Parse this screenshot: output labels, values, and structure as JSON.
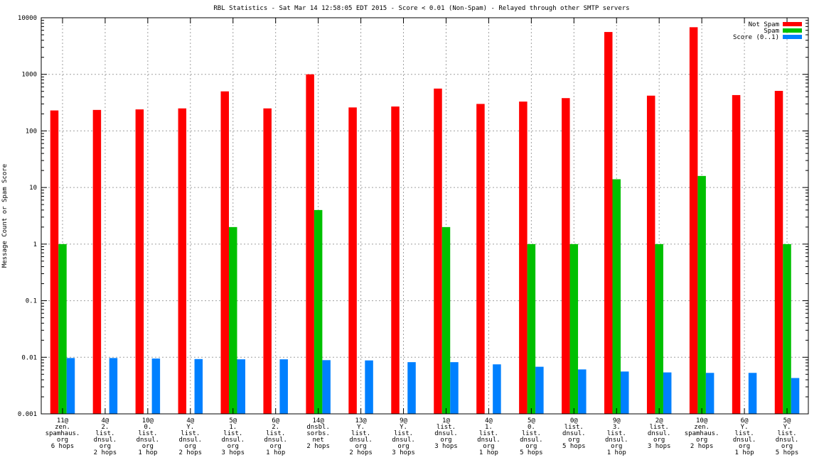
{
  "chart_data": {
    "type": "bar",
    "title": "RBL Statistics - Sat Mar 14 12:58:05 EDT 2015 - Score < 0.01 (Non-Spam) - Relayed through other SMTP servers",
    "xlabel": "",
    "ylabel": "Message Count or Spam Score",
    "yscale": "log",
    "ylim": [
      0.001,
      10000
    ],
    "yticks": [
      {
        "value": 0.001,
        "label": "0.001"
      },
      {
        "value": 0.01,
        "label": "0.01"
      },
      {
        "value": 0.1,
        "label": "0.1"
      },
      {
        "value": 1,
        "label": "1"
      },
      {
        "value": 10,
        "label": "10"
      },
      {
        "value": 100,
        "label": "100"
      },
      {
        "value": 1000,
        "label": "1000"
      },
      {
        "value": 10000,
        "label": "10000"
      }
    ],
    "grid": true,
    "legend_position": "top-right",
    "categories": [
      [
        "11@",
        "zen.",
        "spamhaus.",
        "org",
        "6 hops"
      ],
      [
        "4@",
        "2.",
        "list.",
        "dnsul.",
        "org",
        "2 hops"
      ],
      [
        "10@",
        "0.",
        "list.",
        "dnsul.",
        "org",
        "1 hop"
      ],
      [
        "4@",
        "Y.",
        "list.",
        "dnsul.",
        "org",
        "2 hops"
      ],
      [
        "5@",
        "1.",
        "list.",
        "dnsul.",
        "org",
        "3 hops"
      ],
      [
        "6@",
        "2.",
        "list.",
        "dnsul.",
        "org",
        "1 hop"
      ],
      [
        "14@",
        "dnsbl.",
        "sorbs.",
        "net",
        "2 hops"
      ],
      [
        "13@",
        "Y.",
        "list.",
        "dnsul.",
        "org",
        "2 hops"
      ],
      [
        "9@",
        "Y.",
        "list.",
        "dnsul.",
        "org",
        "3 hops"
      ],
      [
        "1@",
        "list.",
        "dnsul.",
        "org",
        "3 hops"
      ],
      [
        "4@",
        "1.",
        "list.",
        "dnsul.",
        "org",
        "1 hop"
      ],
      [
        "5@",
        "0.",
        "list.",
        "dnsul.",
        "org",
        "5 hops"
      ],
      [
        "0@",
        "list.",
        "dnsul.",
        "org",
        "5 hops"
      ],
      [
        "9@",
        "3.",
        "list.",
        "dnsul.",
        "org",
        "1 hop"
      ],
      [
        "2@",
        "list.",
        "dnsul.",
        "org",
        "3 hops"
      ],
      [
        "10@",
        "zen.",
        "spamhaus.",
        "org",
        "2 hops"
      ],
      [
        "6@",
        "Y.",
        "list.",
        "dnsul.",
        "org",
        "1 hop"
      ],
      [
        "5@",
        "Y.",
        "list.",
        "dnsul.",
        "org",
        "5 hops"
      ]
    ],
    "series": [
      {
        "name": "Not Spam",
        "color": "#ff0000",
        "values": [
          230,
          235,
          240,
          250,
          500,
          250,
          1000,
          260,
          270,
          560,
          300,
          330,
          380,
          5600,
          420,
          6800,
          430,
          510
        ]
      },
      {
        "name": "Spam",
        "color": "#00c000",
        "values": [
          1,
          null,
          null,
          null,
          2,
          null,
          4,
          null,
          null,
          2,
          null,
          1,
          1,
          14,
          1,
          16,
          null,
          1
        ]
      },
      {
        "name": "Score (0..1)",
        "color": "#0080ff",
        "values": [
          0.0097,
          0.0097,
          0.0095,
          0.0093,
          0.0092,
          0.0092,
          0.0089,
          0.0088,
          0.0082,
          0.0082,
          0.0075,
          0.0068,
          0.0061,
          0.0056,
          0.0054,
          0.0053,
          0.0053,
          0.0043
        ]
      }
    ]
  }
}
